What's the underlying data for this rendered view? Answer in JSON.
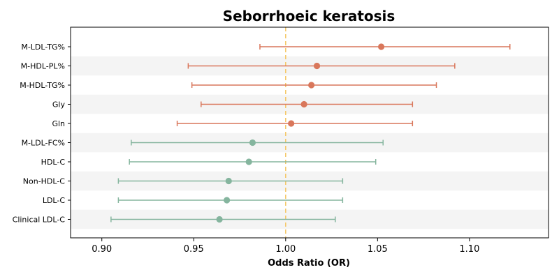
{
  "chart_data": {
    "type": "forest",
    "title": "Seborrhoeic keratosis",
    "xlabel": "Odds Ratio (OR)",
    "ylabel": "",
    "xlim": [
      0.883,
      1.143
    ],
    "xticks": [
      0.9,
      0.95,
      1.0,
      1.05,
      1.1
    ],
    "xtick_labels": [
      "0.90",
      "0.95",
      "1.00",
      "1.05",
      "1.10"
    ],
    "reference_line": 1.0,
    "colors": {
      "positive": "#d9775b",
      "negative": "#85b59e",
      "reference": "#f5c96a",
      "band": "#f4f4f4"
    },
    "rows": [
      {
        "label": "M-LDL-TG%",
        "or": 1.052,
        "lower": 0.986,
        "upper": 1.122
      },
      {
        "label": "M-HDL-PL%",
        "or": 1.017,
        "lower": 0.947,
        "upper": 1.092
      },
      {
        "label": "M-HDL-TG%",
        "or": 1.014,
        "lower": 0.949,
        "upper": 1.082
      },
      {
        "label": "Gly",
        "or": 1.01,
        "lower": 0.954,
        "upper": 1.069
      },
      {
        "label": "Gln",
        "or": 1.003,
        "lower": 0.941,
        "upper": 1.069
      },
      {
        "label": "M-LDL-FC%",
        "or": 0.982,
        "lower": 0.916,
        "upper": 1.053
      },
      {
        "label": "HDL-C",
        "or": 0.98,
        "lower": 0.915,
        "upper": 1.049
      },
      {
        "label": "Non-HDL-C",
        "or": 0.969,
        "lower": 0.909,
        "upper": 1.031
      },
      {
        "label": "LDL-C",
        "or": 0.968,
        "lower": 0.909,
        "upper": 1.031
      },
      {
        "label": "Clinical LDL-C",
        "or": 0.964,
        "lower": 0.905,
        "upper": 1.027
      }
    ]
  }
}
